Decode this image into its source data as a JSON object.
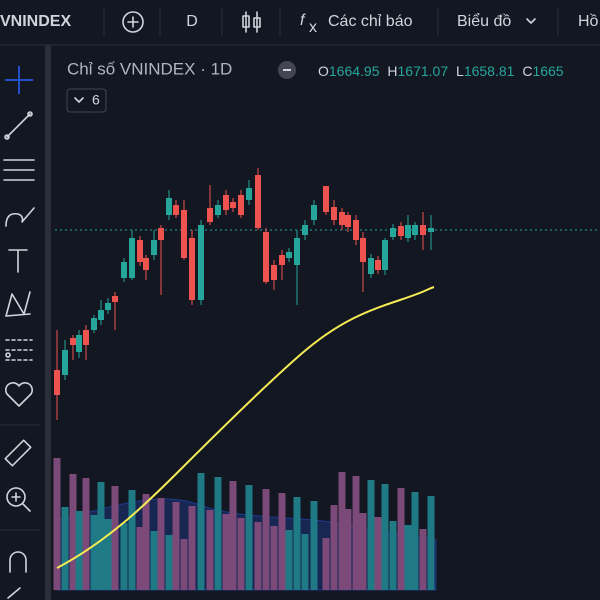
{
  "toolbar": {
    "symbol": "VNINDEX",
    "interval": "D",
    "indicators": "Các chỉ báo",
    "chart_type": "Biểu đồ",
    "next": "Hồ"
  },
  "legend": {
    "title": "Chỉ số VNINDEX · 1D",
    "open_label": "O",
    "open": "1664.95",
    "high_label": "H",
    "high": "1671.07",
    "low_label": "L",
    "low": "1658.81",
    "close_label": "C",
    "close": "1665",
    "indicator_count": "6"
  }
}
